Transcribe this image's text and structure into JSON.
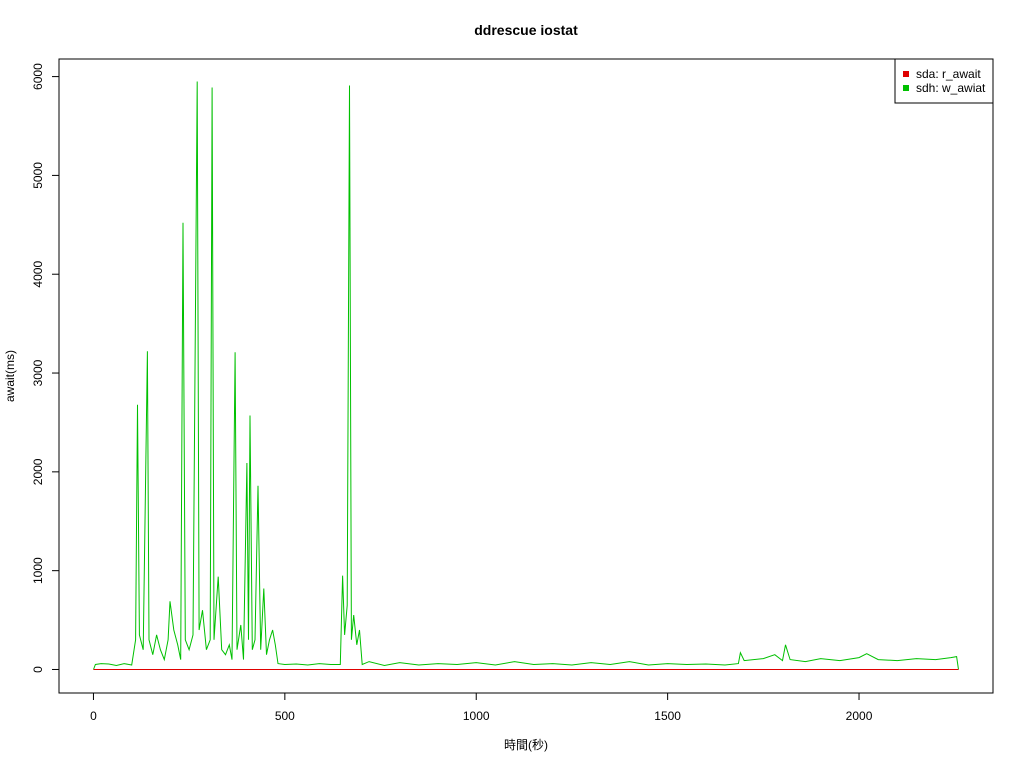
{
  "chart_data": {
    "type": "line",
    "title": "ddrescue iostat",
    "xlabel": "時間(秒)",
    "ylabel": "await(ms)",
    "x": [
      0,
      5,
      20,
      40,
      60,
      80,
      100,
      110,
      115,
      120,
      130,
      141,
      145,
      155,
      165,
      175,
      185,
      195,
      200,
      210,
      220,
      228,
      234,
      240,
      250,
      260,
      271,
      276,
      285,
      295,
      305,
      310,
      315,
      326,
      335,
      345,
      355,
      362,
      370,
      375,
      385,
      392,
      401,
      405,
      409,
      415,
      422,
      430,
      437,
      445,
      452,
      460,
      468,
      475,
      482,
      500,
      530,
      560,
      590,
      620,
      645,
      651,
      656,
      663,
      669,
      674,
      680,
      688,
      695,
      702,
      720,
      760,
      800,
      850,
      900,
      950,
      1000,
      1050,
      1100,
      1150,
      1200,
      1250,
      1300,
      1350,
      1400,
      1450,
      1500,
      1550,
      1600,
      1650,
      1685,
      1690,
      1700,
      1750,
      1780,
      1800,
      1808,
      1820,
      1860,
      1900,
      1950,
      2000,
      2020,
      2050,
      2100,
      2150,
      2200,
      2240,
      2255,
      2260
    ],
    "series": [
      {
        "name": "sda: r_await",
        "color": "#df0000",
        "values": [
          0,
          0,
          0,
          0,
          0,
          0,
          0,
          0,
          0,
          0,
          0,
          0,
          0,
          0,
          0,
          0,
          0,
          0,
          0,
          0,
          0,
          0,
          0,
          0,
          0,
          0,
          0,
          0,
          0,
          0,
          0,
          0,
          0,
          0,
          0,
          0,
          0,
          0,
          0,
          0,
          0,
          0,
          0,
          0,
          0,
          0,
          0,
          0,
          0,
          0,
          0,
          0,
          0,
          0,
          0,
          0,
          0,
          0,
          0,
          0,
          0,
          0,
          0,
          0,
          0,
          0,
          0,
          0,
          0,
          0,
          0,
          0,
          0,
          0,
          0,
          0,
          0,
          0,
          0,
          0,
          0,
          0,
          0,
          0,
          0,
          0,
          0,
          0,
          0,
          0,
          0,
          0,
          0,
          0,
          0,
          0,
          0,
          0,
          0,
          0,
          0,
          0,
          0,
          0,
          0,
          0,
          0,
          0,
          0,
          0
        ]
      },
      {
        "name": "sdh: w_awiat",
        "color": "#00c000",
        "values": [
          0,
          50,
          60,
          55,
          40,
          60,
          45,
          300,
          2680,
          350,
          200,
          3220,
          300,
          150,
          350,
          200,
          100,
          300,
          690,
          400,
          250,
          100,
          4520,
          300,
          200,
          350,
          5950,
          400,
          600,
          200,
          300,
          5890,
          300,
          940,
          200,
          150,
          250,
          100,
          3210,
          200,
          450,
          100,
          2090,
          300,
          2570,
          200,
          300,
          1860,
          200,
          820,
          150,
          300,
          400,
          250,
          60,
          50,
          55,
          45,
          60,
          50,
          50,
          950,
          350,
          650,
          5910,
          300,
          550,
          250,
          400,
          50,
          80,
          40,
          70,
          45,
          60,
          50,
          70,
          45,
          80,
          50,
          60,
          45,
          70,
          50,
          80,
          45,
          60,
          50,
          55,
          45,
          60,
          170,
          90,
          110,
          150,
          90,
          250,
          100,
          80,
          110,
          90,
          120,
          160,
          100,
          90,
          110,
          100,
          120,
          130,
          0
        ]
      }
    ],
    "xlim": [
      -90,
      2350
    ],
    "ylim": [
      -238,
      6178
    ],
    "xticks": [
      0,
      500,
      1000,
      1500,
      2000
    ],
    "yticks": [
      0,
      1000,
      2000,
      3000,
      4000,
      5000,
      6000
    ],
    "legend": "top-right"
  }
}
